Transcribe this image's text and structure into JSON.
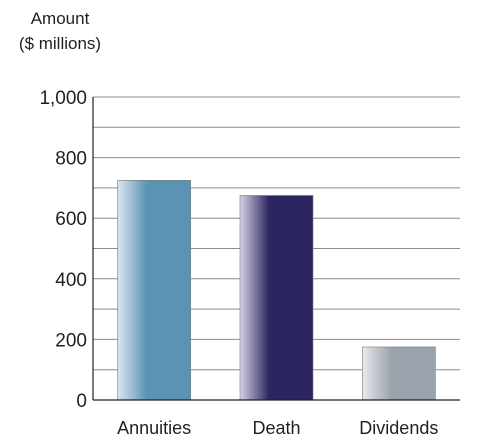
{
  "chart_data": {
    "type": "bar",
    "title": "",
    "xlabel": "",
    "ylabel_lines": [
      "Amount",
      "($ millions)"
    ],
    "categories": [
      "Annuities",
      "Death",
      "Dividends"
    ],
    "values": [
      725,
      675,
      175
    ],
    "ylim": [
      0,
      1000
    ],
    "yticks": [
      0,
      200,
      400,
      600,
      800,
      1000
    ],
    "ytick_labels": [
      "0",
      "200",
      "400",
      "600",
      "800",
      "1,000"
    ],
    "minor_gridlines_every": 100,
    "grid": true,
    "bar_colors": [
      {
        "light": "#d9e6f0",
        "dark": "#5a93b4"
      },
      {
        "light": "#d6d3e6",
        "dark": "#2b2560"
      },
      {
        "light": "#e8eaed",
        "dark": "#9aa2ab"
      }
    ],
    "grid_color": "#8c8c8c",
    "axis_color": "#231f20"
  }
}
